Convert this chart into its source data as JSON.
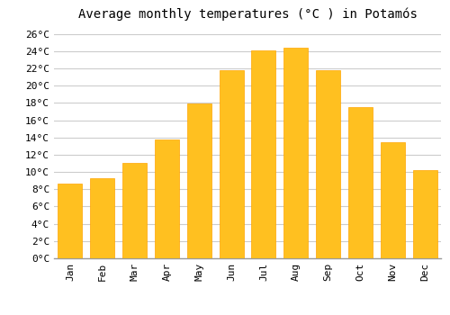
{
  "title": "Average monthly temperatures (°C ) in Potamós",
  "months": [
    "Jan",
    "Feb",
    "Mar",
    "Apr",
    "May",
    "Jun",
    "Jul",
    "Aug",
    "Sep",
    "Oct",
    "Nov",
    "Dec"
  ],
  "values": [
    8.7,
    9.3,
    11.0,
    13.8,
    17.9,
    21.8,
    24.1,
    24.4,
    21.8,
    17.5,
    13.4,
    10.2
  ],
  "bar_color": "#FFC020",
  "bar_edge_color": "#FFA500",
  "background_color": "#FFFFFF",
  "grid_color": "#CCCCCC",
  "ylim": [
    0,
    27
  ],
  "ytick_step": 2,
  "title_fontsize": 10,
  "tick_fontsize": 8,
  "font_family": "monospace"
}
